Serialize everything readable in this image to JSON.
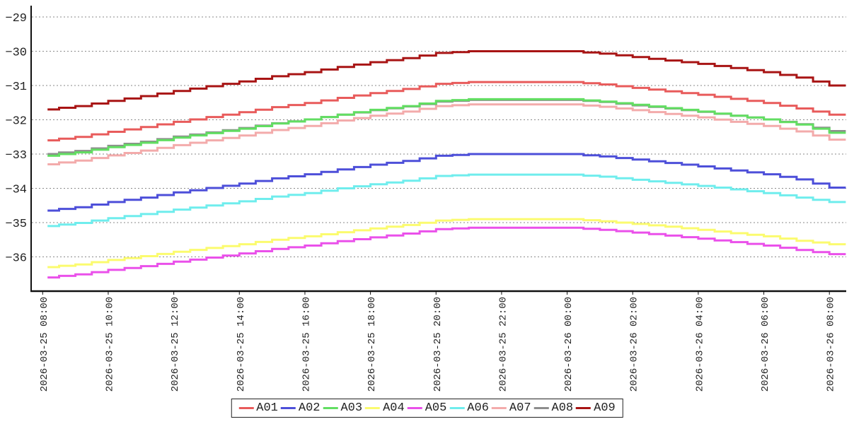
{
  "chart_data": {
    "type": "line",
    "line_style": "step",
    "title": "",
    "grid": {
      "horizontal": true,
      "style": "dashed",
      "color": "#8a8a8a"
    },
    "legend_position": "bottom-center",
    "x_axis": {
      "tick_labels": [
        "2026-03-25 08:00",
        "2026-03-25 10:00",
        "2026-03-25 12:00",
        "2026-03-25 14:00",
        "2026-03-25 16:00",
        "2026-03-25 18:00",
        "2026-03-25 20:00",
        "2026-03-25 22:00",
        "2026-03-26 00:00",
        "2026-03-26 02:00",
        "2026-03-26 04:00",
        "2026-03-26 06:00",
        "2026-03-26 08:00"
      ],
      "tick_interval_hours": 2,
      "label_rotation_deg": -90
    },
    "y_axis": {
      "tick_labels": [
        "−29",
        "−30",
        "−31",
        "−32",
        "−33",
        "−34",
        "−35",
        "−36"
      ],
      "tick_values": [
        -29,
        -30,
        -31,
        -32,
        -33,
        -34,
        -35,
        -36
      ],
      "ylim": [
        -37.2,
        -28.7
      ]
    },
    "sample_interval_hours": 1,
    "sample_start_label": "2026-03-25 08:00",
    "data_start_offset_hours": 0.15,
    "data_end_offset_hours": 24.5,
    "draw_order": [
      "A04",
      "A05",
      "A06",
      "A02",
      "A07",
      "A08",
      "A03",
      "A01",
      "A09"
    ],
    "series": [
      {
        "name": "A01",
        "color": "#e85b5b",
        "values": [
          -32.6,
          -32.5,
          -32.35,
          -32.21,
          -32.06,
          -31.92,
          -31.78,
          -31.63,
          -31.51,
          -31.36,
          -31.22,
          -31.1,
          -30.95,
          -30.9,
          -30.9,
          -30.9,
          -30.9,
          -30.97,
          -31.07,
          -31.17,
          -31.27,
          -31.39,
          -31.51,
          -31.67,
          -31.85
        ]
      },
      {
        "name": "A02",
        "color": "#4d4fd9",
        "values": [
          -34.65,
          -34.55,
          -34.4,
          -34.27,
          -34.12,
          -33.99,
          -33.86,
          -33.71,
          -33.59,
          -33.45,
          -33.31,
          -33.2,
          -33.05,
          -33.0,
          -33.0,
          -33.0,
          -33.0,
          -33.07,
          -33.16,
          -33.26,
          -33.36,
          -33.48,
          -33.59,
          -33.74,
          -33.98
        ]
      },
      {
        "name": "A03",
        "color": "#62de62",
        "values": [
          -33.05,
          -32.95,
          -32.8,
          -32.67,
          -32.52,
          -32.39,
          -32.26,
          -32.11,
          -31.99,
          -31.85,
          -31.71,
          -31.6,
          -31.45,
          -31.4,
          -31.4,
          -31.4,
          -31.4,
          -31.47,
          -31.56,
          -31.66,
          -31.76,
          -31.88,
          -31.99,
          -32.14,
          -32.38
        ]
      },
      {
        "name": "A04",
        "color": "#fbfb6e",
        "values": [
          -36.3,
          -36.22,
          -36.09,
          -35.98,
          -35.85,
          -35.74,
          -35.63,
          -35.5,
          -35.4,
          -35.28,
          -35.17,
          -35.07,
          -34.94,
          -34.9,
          -34.9,
          -34.9,
          -34.9,
          -34.96,
          -35.04,
          -35.12,
          -35.21,
          -35.31,
          -35.4,
          -35.53,
          -35.63
        ]
      },
      {
        "name": "A05",
        "color": "#ea50ea",
        "values": [
          -36.6,
          -36.51,
          -36.38,
          -36.27,
          -36.14,
          -36.02,
          -35.9,
          -35.77,
          -35.67,
          -35.54,
          -35.43,
          -35.32,
          -35.19,
          -35.15,
          -35.15,
          -35.15,
          -35.15,
          -35.21,
          -35.29,
          -35.38,
          -35.47,
          -35.57,
          -35.67,
          -35.8,
          -35.92
        ]
      },
      {
        "name": "A06",
        "color": "#6feded",
        "values": [
          -35.1,
          -35.01,
          -34.87,
          -34.75,
          -34.62,
          -34.5,
          -34.38,
          -34.24,
          -34.14,
          -34.0,
          -33.88,
          -33.78,
          -33.64,
          -33.6,
          -33.6,
          -33.6,
          -33.6,
          -33.66,
          -33.75,
          -33.84,
          -33.93,
          -34.03,
          -34.14,
          -34.27,
          -34.4
        ]
      },
      {
        "name": "A07",
        "color": "#f3abab",
        "values": [
          -33.3,
          -33.19,
          -33.04,
          -32.9,
          -32.74,
          -32.6,
          -32.46,
          -32.3,
          -32.18,
          -32.02,
          -31.88,
          -31.76,
          -31.6,
          -31.55,
          -31.55,
          -31.55,
          -31.55,
          -31.62,
          -31.72,
          -31.83,
          -31.93,
          -32.06,
          -32.18,
          -32.34,
          -32.58
        ]
      },
      {
        "name": "A08",
        "color": "#8d8d8d",
        "values": [
          -33.0,
          -32.91,
          -32.76,
          -32.64,
          -32.49,
          -32.37,
          -32.24,
          -32.1,
          -31.99,
          -31.85,
          -31.72,
          -31.61,
          -31.47,
          -31.42,
          -31.42,
          -31.42,
          -31.42,
          -31.48,
          -31.58,
          -31.67,
          -31.77,
          -31.88,
          -31.99,
          -32.13,
          -32.33
        ]
      },
      {
        "name": "A09",
        "color": "#a81414",
        "values": [
          -31.7,
          -31.6,
          -31.45,
          -31.31,
          -31.16,
          -31.02,
          -30.88,
          -30.73,
          -30.61,
          -30.46,
          -30.32,
          -30.2,
          -30.05,
          -30.0,
          -30.0,
          -30.0,
          -30.0,
          -30.07,
          -30.17,
          -30.27,
          -30.37,
          -30.49,
          -30.61,
          -30.77,
          -31.0
        ]
      }
    ]
  }
}
